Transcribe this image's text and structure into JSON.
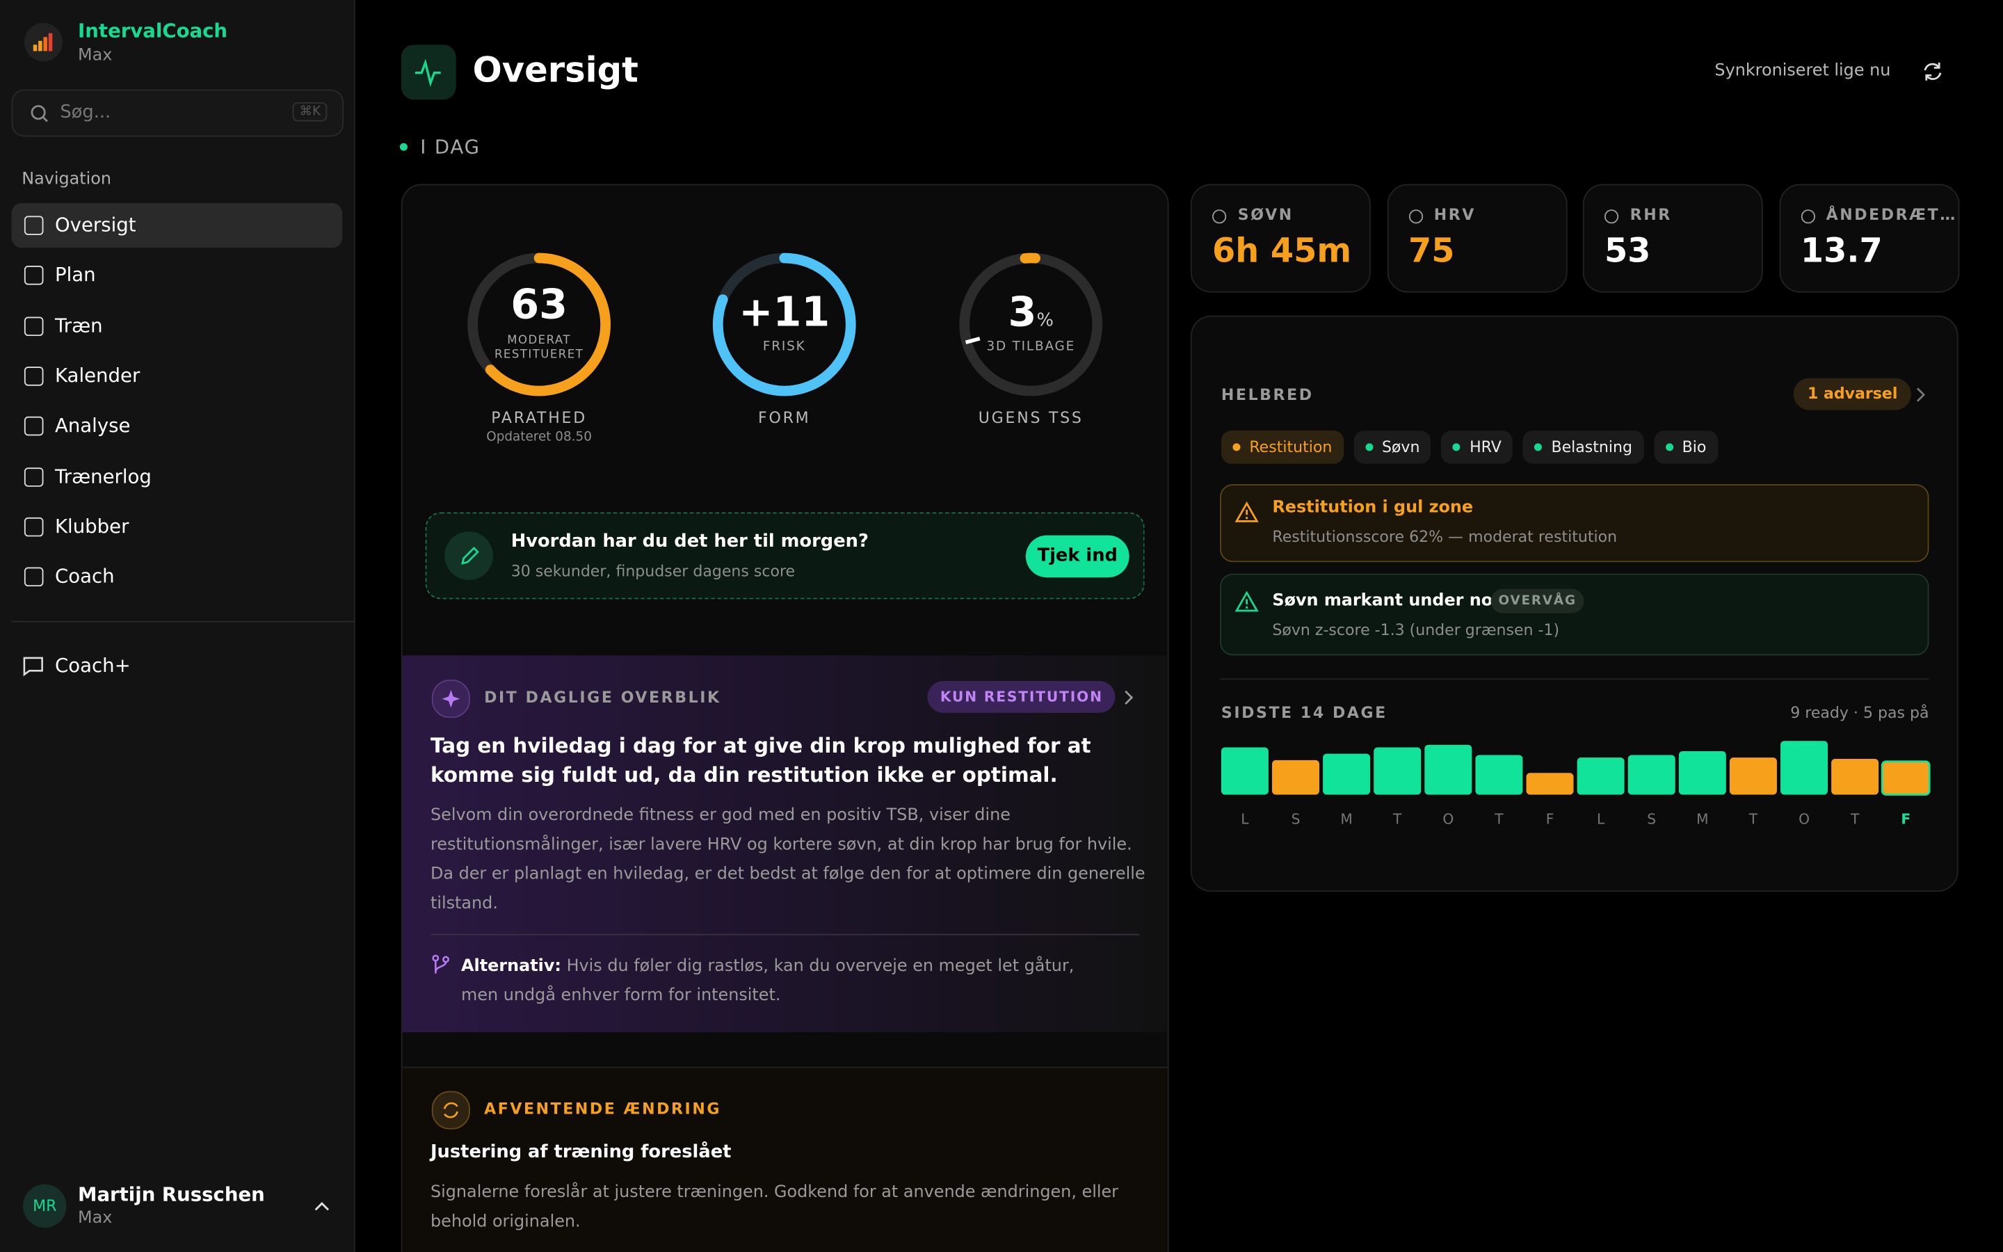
{
  "sidebar": {
    "app_name": "IntervalCoach",
    "plan": "Max",
    "search_placeholder": "Søg...",
    "search_shortcut": "⌘K",
    "nav_heading": "Navigation",
    "nav": [
      "Oversigt",
      "Plan",
      "Træn",
      "Kalender",
      "Analyse",
      "Trænerlog",
      "Klubber",
      "Coach"
    ],
    "extra": "Coach+",
    "user": {
      "initials": "MR",
      "name": "Martijn Russchen",
      "plan": "Max"
    }
  },
  "header": {
    "title": "Oversigt",
    "sync": "Synkroniseret lige nu"
  },
  "section_label": "I DAG",
  "readiness": {
    "value": 63,
    "label_lines": [
      "MODERAT",
      "RESTITUERET"
    ],
    "caption": "PARATHED",
    "updated": "Opdateret 08.50"
  },
  "form": {
    "value": "+11",
    "sub": "FRISK",
    "caption": "FORM"
  },
  "tss": {
    "value": 3,
    "unit": "%",
    "sub": "3D TILBAGE",
    "caption": "UGENS TSS"
  },
  "checkin": {
    "title": "Hvordan har du det her til morgen?",
    "subtitle": "30 sekunder, finpudser dagens score",
    "button": "Tjek ind"
  },
  "overview": {
    "label": "DIT DAGLIGE OVERBLIK",
    "badge": "KUN RESTITUTION",
    "headline": "Tag en hviledag i dag for at give din krop mulighed for at komme sig fuldt ud, da din restitution ikke er optimal.",
    "body": "Selvom din overordnede fitness er god med en positiv TSB, viser dine restitutionsmålinger, især lavere HRV og kortere søvn, at din krop har brug for hvile. Da der er planlagt en hviledag, er det bedst at følge den for at optimere din generelle tilstand.",
    "alt_label": "Alternativ:",
    "alt_text": "Hvis du føler dig rastløs, kan du overveje en meget let gåtur, men undgå enhver form for intensitet."
  },
  "pending": {
    "label": "AFVENTENDE ÆNDRING",
    "title": "Justering af træning foreslået",
    "body": "Signalerne foreslår at justere træningen. Godkend for at anvende ændringen, eller behold originalen."
  },
  "metrics": [
    {
      "label": "SØVN",
      "value": "6h 45m",
      "color": "#f7a01c"
    },
    {
      "label": "HRV",
      "value": 75,
      "color": "#f7a01c"
    },
    {
      "label": "RHR",
      "value": 53,
      "color": "#ffffff"
    },
    {
      "label": "ÅNDEDRÆT…",
      "value": 13.7,
      "color": "#ffffff"
    }
  ],
  "health": {
    "title": "HELBRED",
    "warning_count": "1 advarsel",
    "tabs": [
      "Restitution",
      "Søvn",
      "HRV",
      "Belastning",
      "Bio"
    ],
    "alerts": [
      {
        "title": "Restitution i gul zone",
        "text": "Restitutionsscore 62% — moderat restitution"
      },
      {
        "title": "Søvn markant under norm",
        "tag": "OVERVÅG",
        "text": "Søvn z-score -1.3 (under grænsen -1)"
      }
    ],
    "history": {
      "title": "SIDSTE 14 DAGE",
      "summary": "9 ready · 5 pas på",
      "days": [
        "L",
        "S",
        "M",
        "T",
        "O",
        "T",
        "F",
        "L",
        "S",
        "M",
        "T",
        "O",
        "T",
        "F"
      ],
      "values": [
        37,
        27,
        32,
        37,
        39,
        31,
        17,
        29,
        31,
        34,
        29,
        42,
        28,
        26
      ],
      "colors": [
        "#12e39b",
        "#f7a01c",
        "#12e39b",
        "#12e39b",
        "#12e39b",
        "#12e39b",
        "#f7a01c",
        "#12e39b",
        "#12e39b",
        "#12e39b",
        "#f7a01c",
        "#12e39b",
        "#f7a01c",
        "#f7a01c"
      ]
    }
  }
}
